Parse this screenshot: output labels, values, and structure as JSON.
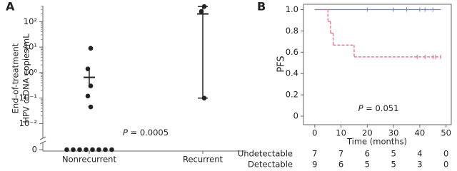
{
  "chart_data": [
    {
      "type": "dotplot",
      "panel_label": "A",
      "y_label": [
        "End-of-treatment",
        "HPV ctDNA copies/mL"
      ],
      "categories": [
        "Nonrecurrent",
        "Recurrent"
      ],
      "values": [
        [
          9,
          1.4,
          0.3,
          0.12,
          0.045,
          0,
          0,
          0,
          0,
          0,
          0,
          0,
          0
        ],
        [
          390,
          250,
          0.1
        ]
      ],
      "mean": [
        0.65,
        200
      ],
      "error_low": [
        0.25,
        0.1
      ],
      "error_high": [
        1.2,
        390
      ],
      "log_scale": true,
      "axis_break": true,
      "color": "#222222",
      "ylim": [
        0.0022,
        420
      ],
      "yticks": [
        0,
        {
          "value": 0.01,
          "label": "10⁻²"
        },
        {
          "value": 0.1,
          "label": "10⁻¹"
        },
        {
          "value": 1,
          "label": "10⁰"
        },
        {
          "value": 10,
          "label": "10¹"
        },
        {
          "value": 100,
          "label": "10²"
        }
      ],
      "annotation": {
        "italic": "P",
        "text": " = 0.0005"
      }
    },
    {
      "type": "km",
      "panel_label": "B",
      "x_label": "Time (months)",
      "y_label": "PFS",
      "xlim": [
        -4.3,
        52
      ],
      "ylim": [
        -0.08,
        1.05
      ],
      "xticks": [
        0,
        10,
        20,
        30,
        40,
        50
      ],
      "yticks": [
        0,
        0.2,
        0.4,
        0.6,
        0.8,
        {
          "value": 1,
          "label": "1.0"
        }
      ],
      "series": [
        {
          "name": "Undetectable",
          "color": "#7b7bd6",
          "dashed": false,
          "x": [
            0,
            48
          ],
          "values": [
            1,
            1
          ],
          "censored_x": [
            20,
            30,
            35,
            40,
            42,
            45
          ],
          "at_risk": [
            7,
            7,
            6,
            5,
            4,
            0
          ]
        },
        {
          "name": "Detectable",
          "color": "#e8637a",
          "dashed": true,
          "x": [
            0,
            5,
            6,
            7,
            15,
            48
          ],
          "values": [
            1,
            0.889,
            0.778,
            0.667,
            0.556,
            0.556
          ],
          "censored_x": [
            39,
            42,
            45,
            46,
            48
          ],
          "at_risk": [
            9,
            6,
            5,
            5,
            3,
            0
          ]
        }
      ],
      "annotation": {
        "italic": "P",
        "text": " = 0.051"
      }
    }
  ]
}
